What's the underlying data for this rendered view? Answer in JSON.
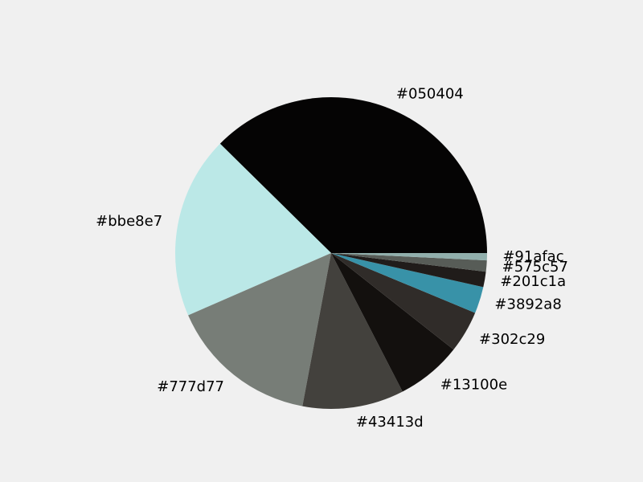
{
  "chart_data": {
    "type": "pie",
    "title": "",
    "labels": [
      "#050404",
      "#bbe8e7",
      "#777d77",
      "#43413d",
      "#13100e",
      "#302c29",
      "#3892a8",
      "#201c1a",
      "#575c57",
      "#91afac"
    ],
    "values": [
      35.4,
      17.8,
      14.6,
      9.9,
      6.4,
      4.1,
      2.6,
      1.5,
      1.1,
      0.7
    ],
    "colors": [
      "#050404",
      "#bbe8e7",
      "#777d77",
      "#43413d",
      "#13100e",
      "#302c29",
      "#3892a8",
      "#201c1a",
      "#575c57",
      "#91afac"
    ],
    "start_angle": 0,
    "direction": "counterclockwise",
    "legend": "none"
  }
}
